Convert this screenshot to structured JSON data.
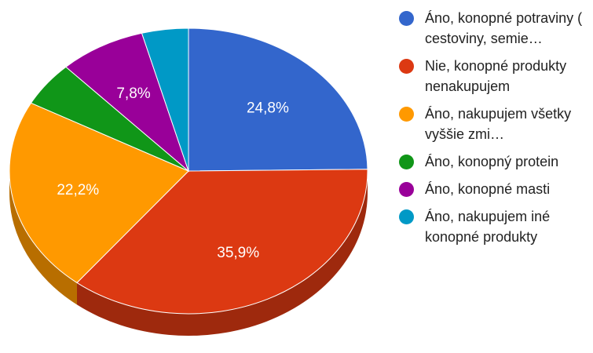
{
  "chart_data": {
    "type": "pie",
    "style": "3d",
    "legend_position": "right",
    "slices": [
      {
        "name": "Áno, konopné potraviny ( cestoviny, semie…",
        "value": 24.8,
        "label": "24,8%",
        "color": "#3366cc"
      },
      {
        "name": "Nie, konopné produkty nenakupujem",
        "value": 35.9,
        "label": "35,9%",
        "color": "#dc3912"
      },
      {
        "name": "Áno, nakupujem všetky vyššie zmi…",
        "value": 22.2,
        "label": "22,2%",
        "color": "#ff9900"
      },
      {
        "name": "Áno, konopný protein",
        "value": 5.1,
        "label": "",
        "color": "#109618"
      },
      {
        "name": "Áno, konopné masti",
        "value": 7.8,
        "label": "7,8%",
        "color": "#990099"
      },
      {
        "name": "Áno, nakupujem iné konopné produkty",
        "value": 4.2,
        "label": "",
        "color": "#0099c6"
      }
    ]
  }
}
